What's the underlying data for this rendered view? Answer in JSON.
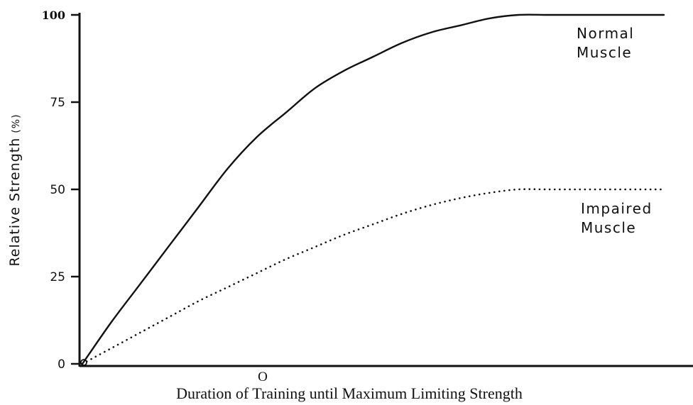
{
  "chart_data": {
    "type": "line",
    "xlabel": "Duration of Training until Maximum Limiting Strength",
    "ylabel": "Relative Strength",
    "ylabel_unit": "(%)",
    "ylim": [
      0,
      100
    ],
    "xlim": [
      0,
      100
    ],
    "yticks": [
      "0",
      "25",
      "50",
      "75",
      "100"
    ],
    "xticks": [
      "O"
    ],
    "grid": false,
    "legend": "inline labels at right end of each curve",
    "series": [
      {
        "name": "Normal Muscle",
        "label_lines": [
          "Normal",
          "Muscle"
        ],
        "style": "solid",
        "color": "#111111",
        "x": [
          0,
          5,
          10,
          15,
          20,
          25,
          30,
          35,
          40,
          45,
          50,
          55,
          60,
          65,
          70,
          75,
          80,
          85,
          90,
          95,
          100
        ],
        "y": [
          0,
          12,
          23,
          34,
          45,
          56,
          65,
          72,
          79,
          84,
          88,
          92,
          95,
          97,
          99,
          100,
          100,
          100,
          100,
          100,
          100
        ]
      },
      {
        "name": "Impaired Muscle",
        "label_lines": [
          "Impaired",
          "Muscle"
        ],
        "style": "dotted",
        "color": "#111111",
        "x": [
          0,
          5,
          10,
          15,
          20,
          25,
          30,
          35,
          40,
          45,
          50,
          55,
          60,
          65,
          70,
          75,
          80,
          85,
          90,
          95,
          100
        ],
        "y": [
          0,
          4.5,
          9,
          13.5,
          18,
          22,
          26,
          30,
          33.5,
          37,
          40,
          43,
          45.5,
          47.5,
          49,
          50,
          50,
          50,
          50,
          50,
          50
        ]
      }
    ]
  }
}
